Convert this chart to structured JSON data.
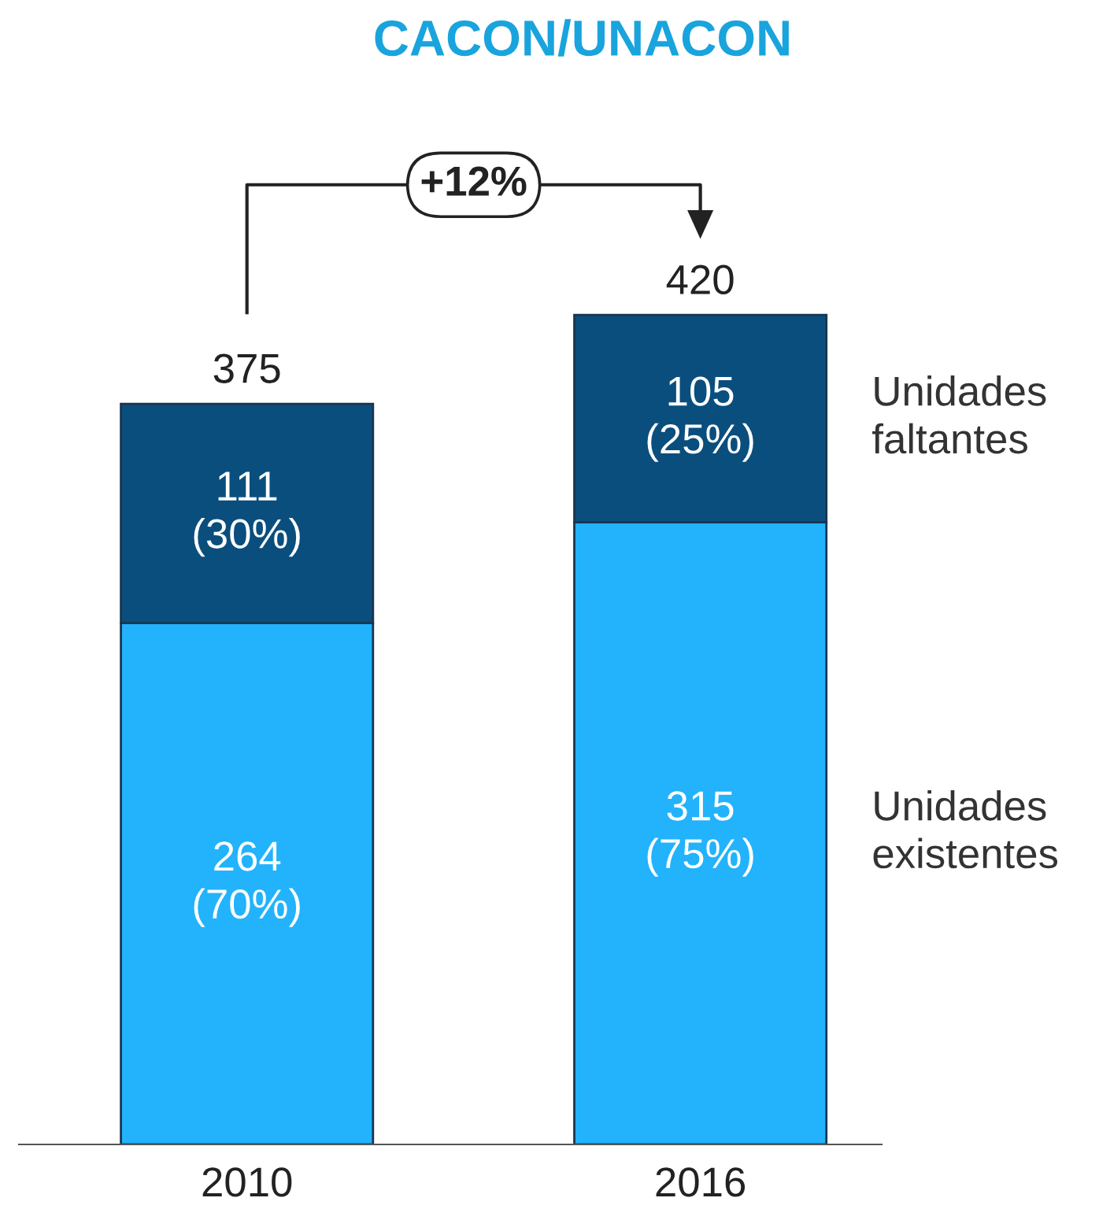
{
  "chart_data": {
    "type": "bar",
    "title": "CACON/UNACON",
    "categories": [
      "2010",
      "2016"
    ],
    "stacked": true,
    "legend": "right",
    "annotations": [
      "+12%"
    ],
    "totals": [
      "375",
      "420"
    ],
    "series": [
      {
        "name": "Unidades existentes",
        "color": "#22b3fc",
        "values": [
          264,
          315
        ],
        "value_labels": [
          "264\n(70%)",
          "315\n(75%)"
        ]
      },
      {
        "name": "Unidades faltantes",
        "color": "#0a4e7d",
        "values": [
          111,
          105
        ],
        "value_labels": [
          "111\n(30%)",
          "105\n(25%)"
        ]
      }
    ]
  }
}
